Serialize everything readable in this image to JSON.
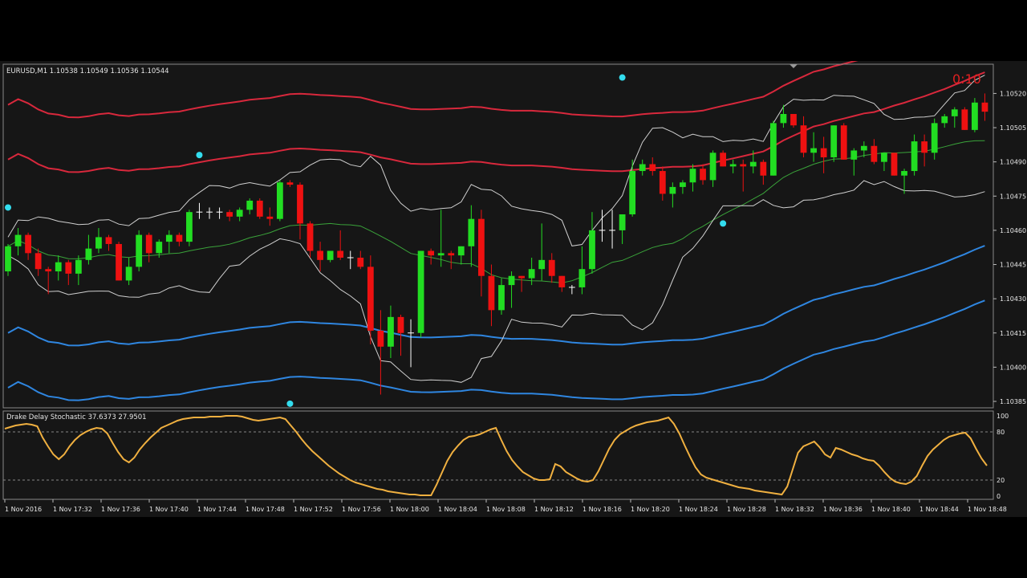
{
  "header": {
    "symbol_label": "EURUSD,M1  1.10538 1.10549 1.10536 1.10544",
    "timer": "0:10"
  },
  "colors": {
    "background": "#161616",
    "up_candle": "#22dd22",
    "down_candle": "#ee1111",
    "doji": "#ffffff",
    "bollinger": "#d0d0d0",
    "upper_envelope": "#d8283c",
    "lower_envelope": "#2f86e0",
    "middle_ma": "#3aa33a",
    "stochastic": "#f0b040",
    "markers": "#33ddee",
    "grid": "#aaaaaa"
  },
  "chart_data": [
    {
      "type": "candlestick",
      "title": "EURUSD,M1  1.10538 1.10549 1.10536 1.10544",
      "price_axis_ticks": [
        "1.10520",
        "1.10505",
        "1.10490",
        "1.10475",
        "1.10460",
        "1.10445",
        "1.10430",
        "1.10415",
        "1.10400",
        "1.10385"
      ],
      "ylim": [
        1.10385,
        1.1053
      ],
      "time_axis_ticks": [
        "1 Nov 2016",
        "1 Nov 17:32",
        "1 Nov 17:36",
        "1 Nov 17:40",
        "1 Nov 17:44",
        "1 Nov 17:48",
        "1 Nov 17:52",
        "1 Nov 17:56",
        "1 Nov 18:00",
        "1 Nov 18:04",
        "1 Nov 18:08",
        "1 Nov 18:12",
        "1 Nov 18:16",
        "1 Nov 18:20",
        "1 Nov 18:24",
        "1 Nov 18:28",
        "1 Nov 18:32",
        "1 Nov 18:36",
        "1 Nov 18:40",
        "1 Nov 18:44",
        "1 Nov 18:48"
      ],
      "ohlc": [
        [
          1.10442,
          1.10454,
          1.1044,
          1.10453
        ],
        [
          1.10453,
          1.10461,
          1.10449,
          1.10458
        ],
        [
          1.10458,
          1.10459,
          1.10447,
          1.1045
        ],
        [
          1.1045,
          1.10452,
          1.1044,
          1.10443
        ],
        [
          1.10443,
          1.10444,
          1.10432,
          1.10442
        ],
        [
          1.10442,
          1.10449,
          1.10438,
          1.10446
        ],
        [
          1.10446,
          1.10447,
          1.10436,
          1.10441
        ],
        [
          1.10441,
          1.10449,
          1.10436,
          1.10447
        ],
        [
          1.10447,
          1.10458,
          1.10445,
          1.10452
        ],
        [
          1.10452,
          1.10461,
          1.1045,
          1.10457
        ],
        [
          1.10457,
          1.10458,
          1.10451,
          1.10454
        ],
        [
          1.10454,
          1.10455,
          1.10438,
          1.10438
        ],
        [
          1.10438,
          1.10448,
          1.10436,
          1.10444
        ],
        [
          1.10444,
          1.1046,
          1.10442,
          1.10458
        ],
        [
          1.10458,
          1.10459,
          1.10446,
          1.1045
        ],
        [
          1.1045,
          1.10456,
          1.10448,
          1.10455
        ],
        [
          1.10455,
          1.1046,
          1.1045,
          1.10458
        ],
        [
          1.10458,
          1.10459,
          1.10453,
          1.10455
        ],
        [
          1.10455,
          1.10469,
          1.10453,
          1.10468
        ],
        [
          1.10468,
          1.10472,
          1.10465,
          1.10468
        ],
        [
          1.10468,
          1.1047,
          1.10465,
          1.10468
        ],
        [
          1.10468,
          1.1047,
          1.10465,
          1.10468
        ],
        [
          1.10468,
          1.10469,
          1.10464,
          1.10466
        ],
        [
          1.10466,
          1.1047,
          1.10464,
          1.10469
        ],
        [
          1.10469,
          1.10474,
          1.10467,
          1.10473
        ],
        [
          1.10473,
          1.10474,
          1.10465,
          1.10466
        ],
        [
          1.10466,
          1.1047,
          1.10462,
          1.10465
        ],
        [
          1.10465,
          1.10482,
          1.10464,
          1.10481
        ],
        [
          1.10481,
          1.10482,
          1.10479,
          1.1048
        ],
        [
          1.1048,
          1.10481,
          1.10456,
          1.10463
        ],
        [
          1.10463,
          1.10464,
          1.10448,
          1.10451
        ],
        [
          1.10451,
          1.10455,
          1.10442,
          1.10447
        ],
        [
          1.10447,
          1.10451,
          1.10446,
          1.10451
        ],
        [
          1.10451,
          1.1046,
          1.10447,
          1.10448
        ],
        [
          1.10448,
          1.10451,
          1.10443,
          1.10448
        ],
        [
          1.10448,
          1.10451,
          1.10443,
          1.10444
        ],
        [
          1.10444,
          1.10449,
          1.1041,
          1.10416
        ],
        [
          1.10416,
          1.10425,
          1.10388,
          1.10409
        ],
        [
          1.10409,
          1.10427,
          1.10404,
          1.10422
        ],
        [
          1.10422,
          1.10423,
          1.10405,
          1.10415
        ],
        [
          1.10415,
          1.10421,
          1.104,
          1.10415
        ],
        [
          1.10415,
          1.10451,
          1.10413,
          1.10451
        ],
        [
          1.10451,
          1.10452,
          1.10445,
          1.10449
        ],
        [
          1.10449,
          1.10469,
          1.10444,
          1.1045
        ],
        [
          1.1045,
          1.10451,
          1.10443,
          1.10449
        ],
        [
          1.10449,
          1.10453,
          1.10445,
          1.10453
        ],
        [
          1.10453,
          1.10471,
          1.10444,
          1.10465
        ],
        [
          1.10465,
          1.10469,
          1.10431,
          1.1044
        ],
        [
          1.1044,
          1.10445,
          1.10418,
          1.10425
        ],
        [
          1.10425,
          1.10439,
          1.10423,
          1.10436
        ],
        [
          1.10436,
          1.10442,
          1.10426,
          1.1044
        ],
        [
          1.1044,
          1.1044,
          1.10433,
          1.10439
        ],
        [
          1.10439,
          1.10448,
          1.10436,
          1.10443
        ],
        [
          1.10443,
          1.10463,
          1.10438,
          1.10447
        ],
        [
          1.10447,
          1.1045,
          1.10437,
          1.1044
        ],
        [
          1.1044,
          1.1044,
          1.10433,
          1.10435
        ],
        [
          1.10435,
          1.10436,
          1.10432,
          1.10435
        ],
        [
          1.10435,
          1.10453,
          1.10432,
          1.10443
        ],
        [
          1.10443,
          1.10468,
          1.10441,
          1.1046
        ],
        [
          1.1046,
          1.10469,
          1.10455,
          1.1046
        ],
        [
          1.1046,
          1.10469,
          1.10452,
          1.1046
        ],
        [
          1.1046,
          1.10466,
          1.10454,
          1.10467
        ],
        [
          1.10467,
          1.10491,
          1.10466,
          1.10486
        ],
        [
          1.10486,
          1.10491,
          1.10484,
          1.10489
        ],
        [
          1.10489,
          1.10492,
          1.10484,
          1.10486
        ],
        [
          1.10486,
          1.10488,
          1.10473,
          1.10476
        ],
        [
          1.10476,
          1.10481,
          1.1047,
          1.10479
        ],
        [
          1.10479,
          1.10482,
          1.10476,
          1.10481
        ],
        [
          1.10481,
          1.10489,
          1.10477,
          1.10487
        ],
        [
          1.10487,
          1.10489,
          1.1048,
          1.10482
        ],
        [
          1.10482,
          1.10495,
          1.10479,
          1.10494
        ],
        [
          1.10494,
          1.10495,
          1.10488,
          1.10488
        ],
        [
          1.10488,
          1.10491,
          1.10485,
          1.10489
        ],
        [
          1.10489,
          1.10491,
          1.10477,
          1.10488
        ],
        [
          1.10488,
          1.10495,
          1.10485,
          1.1049
        ],
        [
          1.1049,
          1.10491,
          1.1048,
          1.10484
        ],
        [
          1.10484,
          1.10508,
          1.10484,
          1.10507
        ],
        [
          1.10507,
          1.10515,
          1.10505,
          1.10511
        ],
        [
          1.10511,
          1.10511,
          1.10505,
          1.10506
        ],
        [
          1.10506,
          1.1051,
          1.10492,
          1.10494
        ],
        [
          1.10494,
          1.10503,
          1.1049,
          1.10496
        ],
        [
          1.10496,
          1.10501,
          1.10485,
          1.10492
        ],
        [
          1.10492,
          1.10506,
          1.1049,
          1.10506
        ],
        [
          1.10506,
          1.10507,
          1.10491,
          1.10491
        ],
        [
          1.10491,
          1.10496,
          1.10484,
          1.10495
        ],
        [
          1.10495,
          1.10499,
          1.10492,
          1.10497
        ],
        [
          1.10497,
          1.105,
          1.10489,
          1.1049
        ],
        [
          1.1049,
          1.10494,
          1.10486,
          1.10494
        ],
        [
          1.10494,
          1.10494,
          1.10484,
          1.10484
        ],
        [
          1.10484,
          1.10487,
          1.10476,
          1.10486
        ],
        [
          1.10486,
          1.10502,
          1.10484,
          1.10499
        ],
        [
          1.10499,
          1.10502,
          1.10488,
          1.10494
        ],
        [
          1.10494,
          1.10509,
          1.10491,
          1.10507
        ],
        [
          1.10507,
          1.10511,
          1.10505,
          1.1051
        ],
        [
          1.1051,
          1.10514,
          1.10505,
          1.10513
        ],
        [
          1.10513,
          1.10514,
          1.10504,
          1.10504
        ],
        [
          1.10504,
          1.10518,
          1.10503,
          1.10516
        ],
        [
          1.10516,
          1.1052,
          1.10508,
          1.10512
        ]
      ]
    },
    {
      "type": "line",
      "title": "Drake Delay Stochastic 37.6373 27.9501",
      "y_axis_ticks": [
        "100",
        "80",
        "20",
        "0"
      ],
      "levels": [
        80,
        20
      ],
      "ylim": [
        0,
        100
      ],
      "values": [
        84,
        86,
        88,
        89,
        90,
        89,
        87,
        73,
        62,
        52,
        46,
        52,
        62,
        70,
        76,
        80,
        83,
        85,
        84,
        78,
        66,
        55,
        46,
        42,
        48,
        58,
        66,
        73,
        79,
        85,
        88,
        91,
        94,
        96,
        97,
        98,
        98,
        98,
        99,
        99,
        99,
        100,
        100,
        100,
        99,
        97,
        95,
        94,
        95,
        96,
        97,
        98,
        96,
        88,
        80,
        71,
        63,
        56,
        50,
        44,
        38,
        33,
        28,
        24,
        20,
        17,
        15,
        13,
        11,
        9,
        8,
        6,
        5,
        4,
        3,
        2,
        2,
        1,
        1,
        1,
        14,
        29,
        44,
        55,
        63,
        70,
        74,
        75,
        77,
        80,
        83,
        85,
        70,
        56,
        45,
        37,
        30,
        26,
        22,
        20,
        20,
        21,
        40,
        37,
        30,
        26,
        22,
        19,
        18,
        20,
        31,
        45,
        59,
        70,
        77,
        81,
        85,
        88,
        90,
        92,
        93,
        94,
        96,
        98,
        90,
        78,
        63,
        49,
        36,
        27,
        23,
        21,
        19,
        17,
        15,
        13,
        11,
        10,
        9,
        7,
        6,
        5,
        4,
        3,
        2,
        12,
        33,
        54,
        62,
        65,
        68,
        61,
        52,
        48,
        60,
        58,
        55,
        52,
        50,
        47,
        45,
        44,
        38,
        30,
        23,
        18,
        16,
        15,
        18,
        25,
        38,
        50,
        58,
        64,
        70,
        74,
        76,
        78,
        79,
        72,
        59,
        47,
        38
      ]
    }
  ],
  "markers": {
    "note": "",
    "points": [
      [
        0,
        1.1047
      ],
      [
        19,
        1.10493
      ],
      [
        28,
        1.10384
      ],
      [
        61,
        1.10527
      ],
      [
        71,
        1.10463
      ]
    ]
  }
}
